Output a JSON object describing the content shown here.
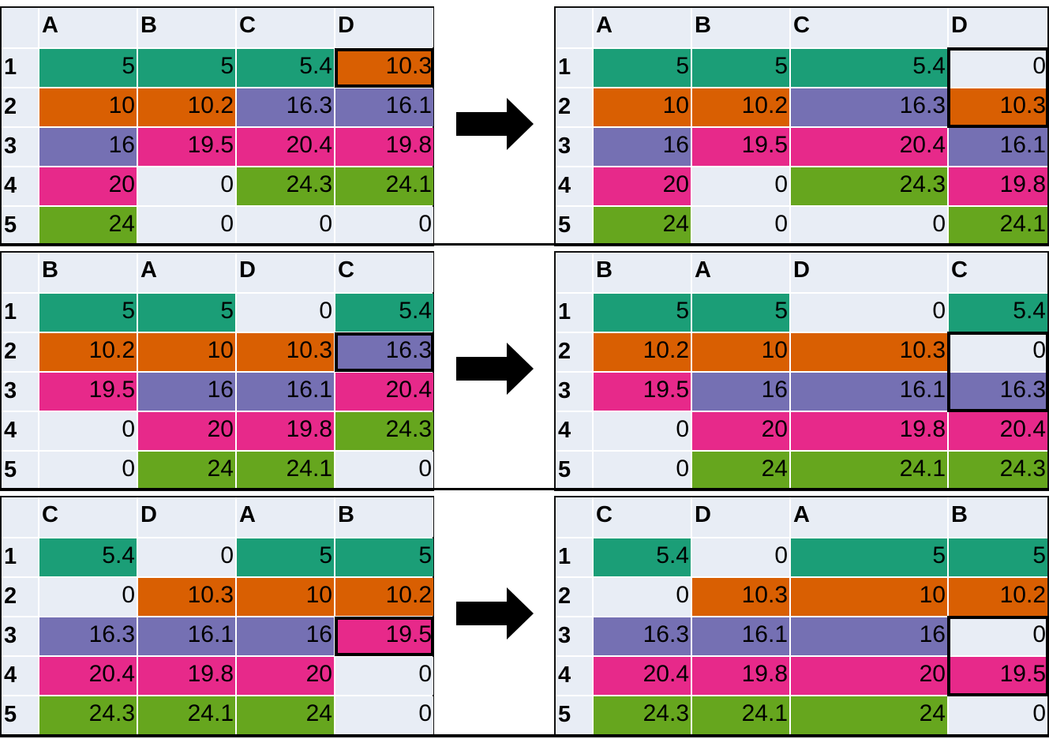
{
  "colors": {
    "teal": "#1b9e77",
    "orange": "#d95f02",
    "purple": "#7570b3",
    "pink": "#e7298a",
    "green": "#66a61e",
    "empty": "#e8edf5"
  },
  "row_labels": [
    "1",
    "2",
    "3",
    "4",
    "5"
  ],
  "panels": [
    {
      "before": {
        "headers": [
          "A",
          "B",
          "C",
          "D"
        ],
        "rows": [
          [
            "5",
            "5",
            "5.4",
            "10.3"
          ],
          [
            "10",
            "10.2",
            "16.3",
            "16.1"
          ],
          [
            "16",
            "19.5",
            "20.4",
            "19.8"
          ],
          [
            "20",
            "0",
            "24.3",
            "24.1"
          ],
          [
            "24",
            "0",
            "0",
            "0"
          ]
        ],
        "fills": [
          [
            "teal",
            "teal",
            "teal",
            "orange"
          ],
          [
            "orange",
            "orange",
            "purple",
            "purple"
          ],
          [
            "purple",
            "pink",
            "pink",
            "pink"
          ],
          [
            "pink",
            "empty",
            "green",
            "green"
          ],
          [
            "green",
            "empty",
            "empty",
            "empty"
          ]
        ],
        "highlight": [
          0,
          3
        ]
      },
      "after": {
        "headers": [
          "A",
          "B",
          "C",
          "D"
        ],
        "rows": [
          [
            "5",
            "5",
            "5.4",
            "0"
          ],
          [
            "10",
            "10.2",
            "16.3",
            "10.3"
          ],
          [
            "16",
            "19.5",
            "20.4",
            "16.1"
          ],
          [
            "20",
            "0",
            "24.3",
            "19.8"
          ],
          [
            "24",
            "0",
            "0",
            "24.1"
          ]
        ],
        "fills": [
          [
            "teal",
            "teal",
            "teal",
            "empty"
          ],
          [
            "orange",
            "orange",
            "purple",
            "orange"
          ],
          [
            "purple",
            "pink",
            "pink",
            "purple"
          ],
          [
            "pink",
            "empty",
            "green",
            "pink"
          ],
          [
            "green",
            "empty",
            "empty",
            "green"
          ]
        ],
        "highlight": [
          [
            0,
            3
          ],
          [
            1,
            3
          ]
        ]
      }
    },
    {
      "before": {
        "headers": [
          "B",
          "A",
          "D",
          "C"
        ],
        "rows": [
          [
            "5",
            "5",
            "0",
            "5.4"
          ],
          [
            "10.2",
            "10",
            "10.3",
            "16.3"
          ],
          [
            "19.5",
            "16",
            "16.1",
            "20.4"
          ],
          [
            "0",
            "20",
            "19.8",
            "24.3"
          ],
          [
            "0",
            "24",
            "24.1",
            "0"
          ]
        ],
        "fills": [
          [
            "teal",
            "teal",
            "empty",
            "teal"
          ],
          [
            "orange",
            "orange",
            "orange",
            "purple"
          ],
          [
            "pink",
            "purple",
            "purple",
            "pink"
          ],
          [
            "empty",
            "pink",
            "pink",
            "green"
          ],
          [
            "empty",
            "green",
            "green",
            "empty"
          ]
        ],
        "highlight": [
          1,
          3
        ]
      },
      "after": {
        "headers": [
          "B",
          "A",
          "D",
          "C"
        ],
        "rows": [
          [
            "5",
            "5",
            "0",
            "5.4"
          ],
          [
            "10.2",
            "10",
            "10.3",
            "0"
          ],
          [
            "19.5",
            "16",
            "16.1",
            "16.3"
          ],
          [
            "0",
            "20",
            "19.8",
            "20.4"
          ],
          [
            "0",
            "24",
            "24.1",
            "24.3"
          ]
        ],
        "fills": [
          [
            "teal",
            "teal",
            "empty",
            "teal"
          ],
          [
            "orange",
            "orange",
            "orange",
            "empty"
          ],
          [
            "pink",
            "purple",
            "purple",
            "purple"
          ],
          [
            "empty",
            "pink",
            "pink",
            "pink"
          ],
          [
            "empty",
            "green",
            "green",
            "green"
          ]
        ],
        "highlight": [
          [
            1,
            3
          ],
          [
            2,
            3
          ]
        ]
      }
    },
    {
      "before": {
        "headers": [
          "C",
          "D",
          "A",
          "B"
        ],
        "rows": [
          [
            "5.4",
            "0",
            "5",
            "5"
          ],
          [
            "0",
            "10.3",
            "10",
            "10.2"
          ],
          [
            "16.3",
            "16.1",
            "16",
            "19.5"
          ],
          [
            "20.4",
            "19.8",
            "20",
            "0"
          ],
          [
            "24.3",
            "24.1",
            "24",
            "0"
          ]
        ],
        "fills": [
          [
            "teal",
            "empty",
            "teal",
            "teal"
          ],
          [
            "empty",
            "orange",
            "orange",
            "orange"
          ],
          [
            "purple",
            "purple",
            "purple",
            "pink"
          ],
          [
            "pink",
            "pink",
            "pink",
            "empty"
          ],
          [
            "green",
            "green",
            "green",
            "empty"
          ]
        ],
        "highlight": [
          2,
          3
        ]
      },
      "after": {
        "headers": [
          "C",
          "D",
          "A",
          "B"
        ],
        "rows": [
          [
            "5.4",
            "0",
            "5",
            "5"
          ],
          [
            "0",
            "10.3",
            "10",
            "10.2"
          ],
          [
            "16.3",
            "16.1",
            "16",
            "0"
          ],
          [
            "20.4",
            "19.8",
            "20",
            "19.5"
          ],
          [
            "24.3",
            "24.1",
            "24",
            "0"
          ]
        ],
        "fills": [
          [
            "teal",
            "empty",
            "teal",
            "teal"
          ],
          [
            "empty",
            "orange",
            "orange",
            "orange"
          ],
          [
            "purple",
            "purple",
            "purple",
            "empty"
          ],
          [
            "pink",
            "pink",
            "pink",
            "pink"
          ],
          [
            "green",
            "green",
            "green",
            "empty"
          ]
        ],
        "highlight": [
          [
            2,
            3
          ],
          [
            3,
            3
          ]
        ]
      }
    }
  ]
}
